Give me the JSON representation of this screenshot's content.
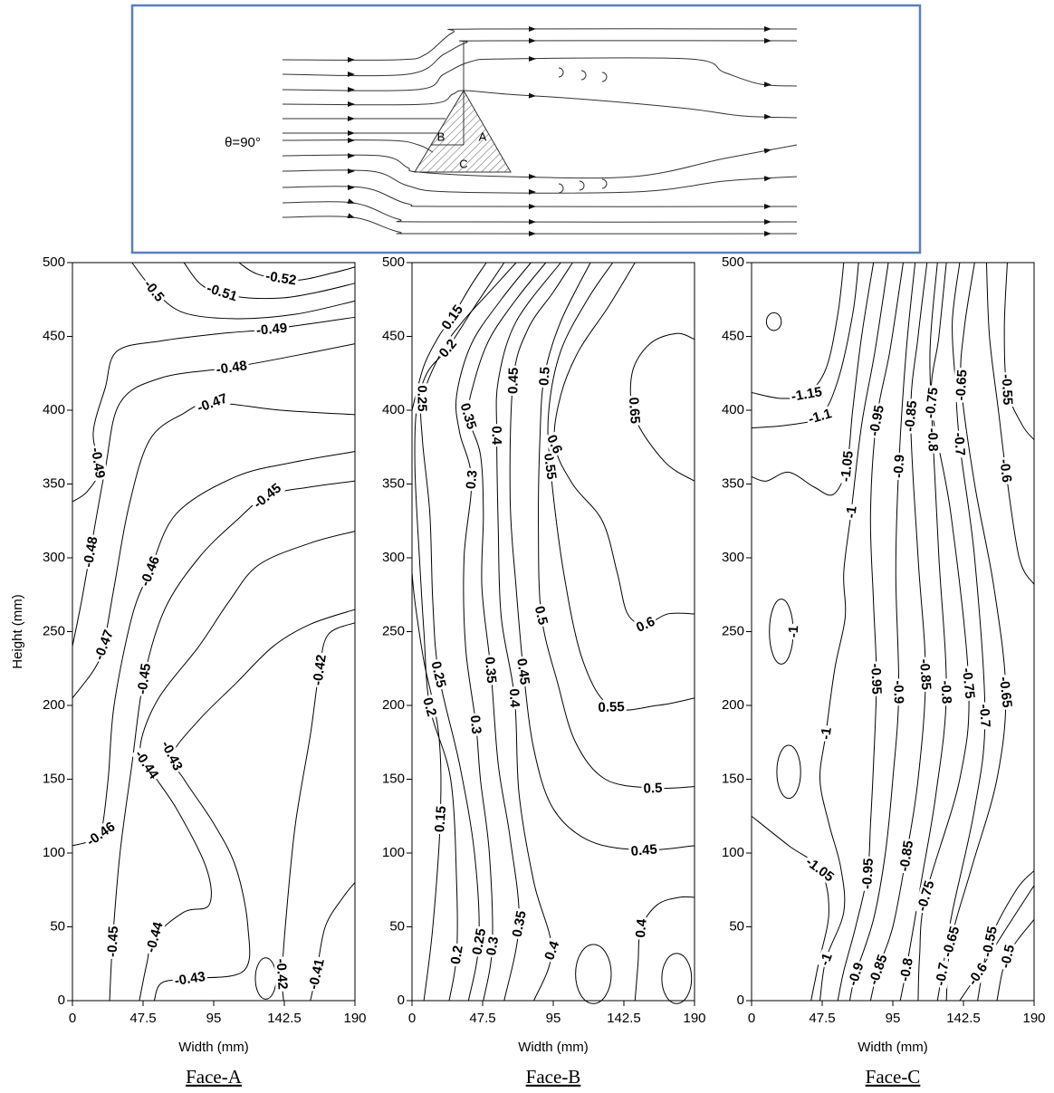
{
  "diagram": {
    "angle_label": "θ=90°",
    "face_a": "A",
    "face_b": "B",
    "face_c": "C"
  },
  "chart_data": [
    {
      "type": "contour",
      "title": "Face-A",
      "xlabel": "Width (mm)",
      "ylabel": "Height (mm)",
      "xlim": [
        0,
        190
      ],
      "ylim": [
        0,
        500
      ],
      "xticks": [
        0,
        47.5,
        95,
        142.5,
        190
      ],
      "yticks": [
        0,
        50,
        100,
        150,
        200,
        250,
        300,
        350,
        400,
        450,
        500
      ],
      "levels": [
        -0.52,
        -0.51,
        -0.5,
        -0.49,
        -0.48,
        -0.47,
        -0.46,
        -0.45,
        -0.44,
        -0.43,
        -0.42,
        -0.41
      ],
      "color": "#000000"
    },
    {
      "type": "contour",
      "title": "Face-B",
      "xlabel": "Width (mm)",
      "xlim": [
        0,
        190
      ],
      "ylim": [
        0,
        500
      ],
      "xticks": [
        0,
        47.5,
        95,
        142.5,
        190
      ],
      "yticks": [
        0,
        50,
        100,
        150,
        200,
        250,
        300,
        350,
        400,
        450,
        500
      ],
      "levels": [
        0.15,
        0.2,
        0.25,
        0.3,
        0.35,
        0.4,
        0.45,
        0.5,
        0.55,
        0.6,
        0.65
      ],
      "color": "#000000"
    },
    {
      "type": "contour",
      "title": "Face-C",
      "xlabel": "Width (mm)",
      "xlim": [
        0,
        190
      ],
      "ylim": [
        0,
        500
      ],
      "xticks": [
        0,
        47.5,
        95,
        142.5,
        190
      ],
      "yticks": [
        0,
        50,
        100,
        150,
        200,
        250,
        300,
        350,
        400,
        450,
        500
      ],
      "levels": [
        -1.15,
        -1.1,
        -1.05,
        -1,
        -0.95,
        -0.9,
        -0.85,
        -0.8,
        -0.75,
        -0.7,
        -0.65,
        -0.6,
        -0.55,
        -0.5
      ],
      "color": "#000000"
    }
  ]
}
